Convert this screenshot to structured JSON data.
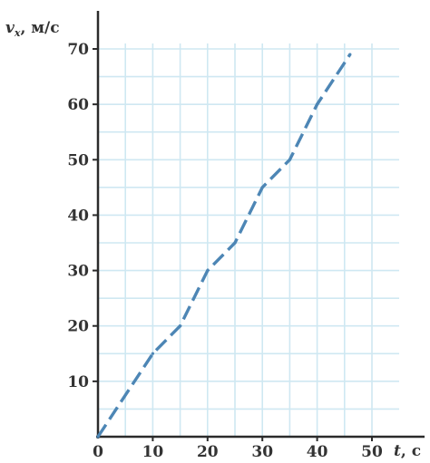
{
  "chart_data": {
    "type": "line",
    "ylabel": "v",
    "ylabel_sub": "x",
    "ylabel_unit": ", м/с",
    "xlabel": "t",
    "xlabel_unit": ", с",
    "xlim": [
      0,
      50
    ],
    "ylim": [
      0,
      70
    ],
    "x_ticks": [
      0,
      10,
      20,
      30,
      40,
      50
    ],
    "y_ticks": [
      10,
      20,
      30,
      40,
      50,
      60,
      70
    ],
    "x_tick_labels": [
      "0",
      "10",
      "20",
      "30",
      "40",
      "50"
    ],
    "y_tick_labels": [
      "10",
      "20",
      "30",
      "40",
      "50",
      "60",
      "70"
    ],
    "grid": true,
    "grid_step_x": 5,
    "grid_step_y": 5,
    "series": [
      {
        "x": [
          0,
          10,
          15,
          20,
          25,
          30,
          35,
          40,
          46
        ],
        "y": [
          0,
          15,
          20,
          30,
          35,
          45,
          50,
          60,
          69
        ],
        "style": "dashed"
      }
    ],
    "colors": {
      "grid": "#cfe8f2",
      "line": "#4d86b5",
      "axis": "#2b2b2b",
      "text": "#333333"
    }
  }
}
